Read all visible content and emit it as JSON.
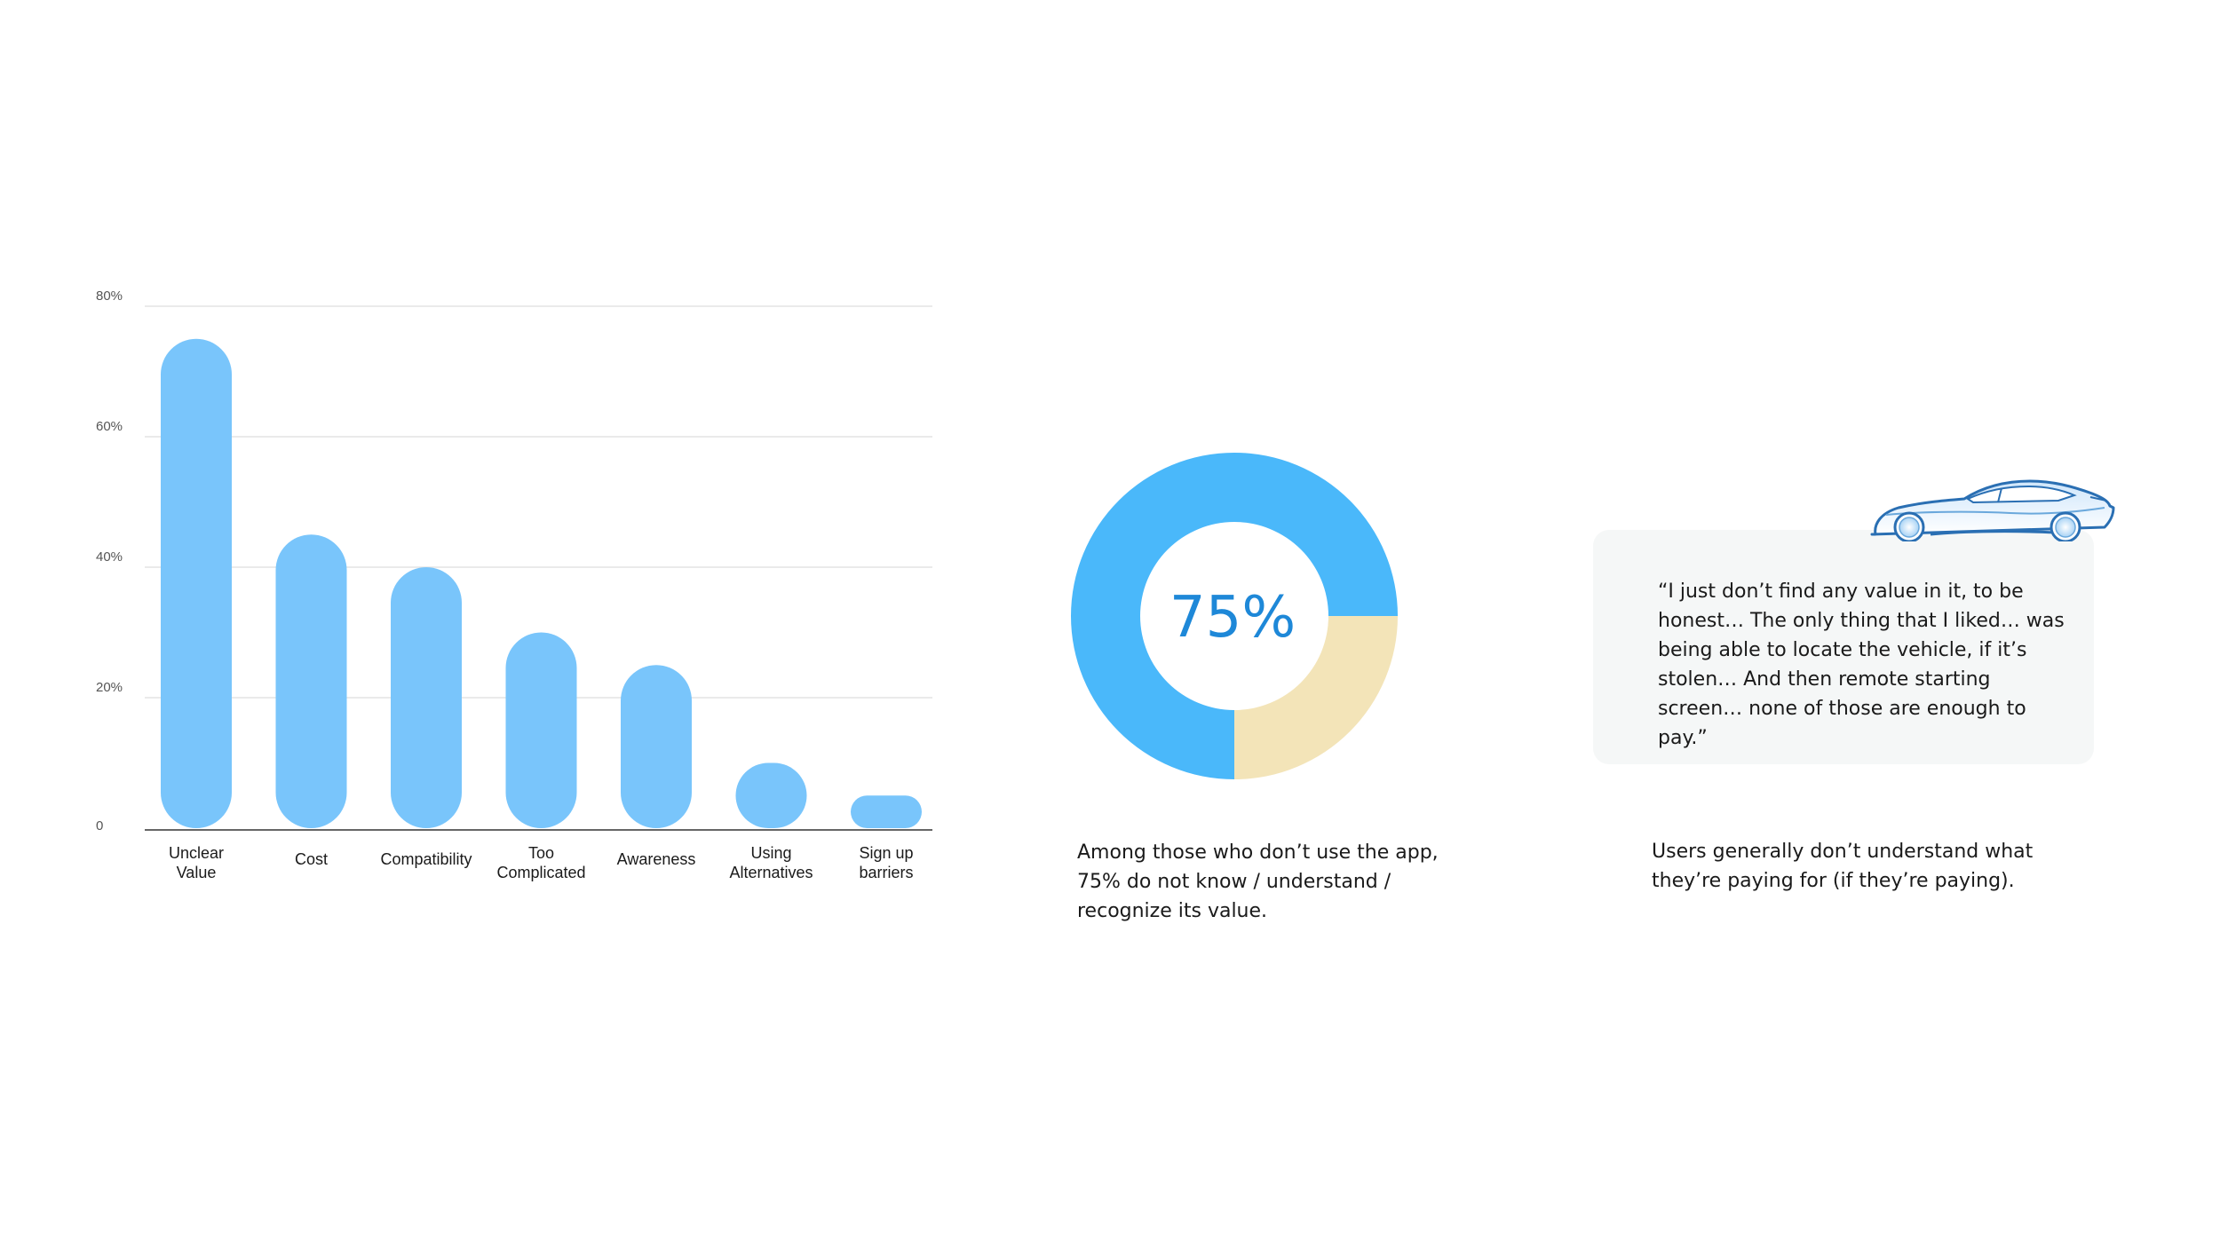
{
  "chart_data": [
    {
      "type": "bar",
      "categories": [
        [
          "Unclear",
          "Value"
        ],
        [
          "Cost"
        ],
        [
          "Compatibility"
        ],
        [
          "Too",
          "Complicated"
        ],
        [
          "Awareness"
        ],
        [
          "Using",
          "Alternatives"
        ],
        [
          "Sign up",
          "barriers"
        ]
      ],
      "values": [
        75,
        45,
        40,
        30,
        25,
        10,
        5
      ],
      "ylim": [
        0,
        80
      ],
      "yticks": [
        0,
        20,
        40,
        60,
        80
      ],
      "ytick_labels": [
        "0",
        "20%",
        "40%",
        "60%",
        "80%"
      ],
      "grid": true,
      "colors": {
        "bar": "#79c5fb",
        "grid": "#e3e3e3",
        "axis": "#666666",
        "tick_label": "#555555",
        "category_label": "#1a1a1a"
      }
    },
    {
      "type": "pie",
      "variant": "donut",
      "center_label": "75%",
      "slices": [
        {
          "value": 75,
          "color": "#4ab8fa"
        },
        {
          "value": 25,
          "color": "#f3e4b8"
        }
      ],
      "colors": {
        "center_label": "#1e88d8"
      }
    }
  ],
  "donut_caption": "Among those who don’t use the app, 75% do not know / understand / recognize its value.",
  "quote": {
    "text": "“I just don’t find any value in it, to be honest… The only thing that I liked… was being able to locate the vehicle, if it’s stolen… And then remote starting screen… none of those are enough to pay.”",
    "caption": "Users generally don’t understand what they’re paying for (if they’re paying).",
    "icon": "sports-car-icon"
  }
}
